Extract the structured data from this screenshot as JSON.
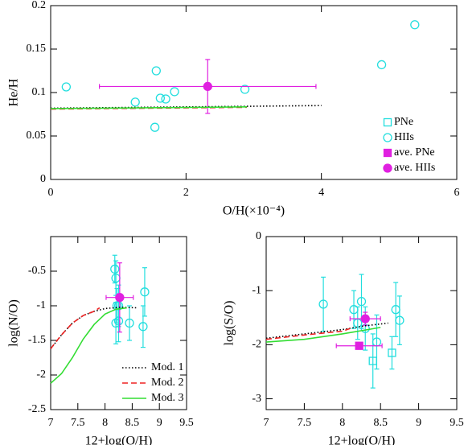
{
  "chart_data": [
    {
      "type": "scatter",
      "xlabel": "O/H(×10⁻⁴)",
      "ylabel": "He/H",
      "xlim": [
        0,
        6
      ],
      "xticks": [
        0,
        2,
        4,
        6
      ],
      "ylim": [
        0,
        0.2
      ],
      "yticks": [
        0,
        0.05,
        0.1,
        0.15,
        0.2
      ],
      "legend": "lower right",
      "series": [
        {
          "name": "PNe",
          "color": "#22dede",
          "marker": "open-square",
          "x": [],
          "y": []
        },
        {
          "name": "HIIs",
          "color": "#22dede",
          "marker": "open-circle",
          "x": [
            0.23,
            1.25,
            1.56,
            1.54,
            1.62,
            1.7,
            1.83,
            2.87,
            4.89,
            5.38
          ],
          "y": [
            0.1065,
            0.089,
            0.125,
            0.06,
            0.0935,
            0.0926,
            0.101,
            0.1037,
            0.132,
            0.178
          ]
        },
        {
          "name": "ave. PNe",
          "color": "#e020e0",
          "marker": "filled-square",
          "x": [],
          "y": []
        },
        {
          "name": "ave. HIIs",
          "color": "#e020e0",
          "marker": "filled-circle",
          "x": [
            2.32
          ],
          "y": [
            0.107
          ],
          "xerr": [
            1.6
          ],
          "yerr": [
            0.031
          ]
        },
        {
          "color": "#000000",
          "style": "dotted",
          "x": [
            0,
            4
          ],
          "y": [
            0.082,
            0.085
          ]
        },
        {
          "color": "#ee2222",
          "style": "dashed",
          "x": [
            0,
            2.9
          ],
          "y": [
            0.081,
            0.083
          ]
        },
        {
          "color": "#33dd33",
          "style": "solid",
          "x": [
            0,
            2.9
          ],
          "y": [
            0.0815,
            0.0835
          ]
        }
      ]
    },
    {
      "type": "scatter",
      "xlabel": "12+log(O/H)",
      "ylabel": "log(N/O)",
      "xlim": [
        7,
        9.5
      ],
      "xticks": [
        7,
        7.5,
        8,
        8.5,
        9,
        9.5
      ],
      "ylim": [
        -2.5,
        0
      ],
      "yticks": [
        -2.5,
        -2,
        -1.5,
        -1,
        -0.5
      ],
      "legend": "lower right",
      "series": [
        {
          "color": "#22dede",
          "marker": "open-circle",
          "x": [
            8.18,
            8.2,
            8.22,
            8.2,
            8.25,
            8.25,
            8.45,
            8.7,
            8.73
          ],
          "y": [
            -0.47,
            -0.6,
            -1.0,
            -1.25,
            -1.22,
            -1.0,
            -1.25,
            -1.3,
            -0.8
          ],
          "yerr": [
            0.2,
            0.25,
            0.25,
            0.3,
            0.3,
            0.3,
            0.25,
            0.3,
            0.35
          ]
        },
        {
          "color": "#e020e0",
          "marker": "filled-circle",
          "x": [
            8.27
          ],
          "y": [
            -0.88
          ],
          "xerr": [
            0.25
          ],
          "yerr": [
            0.5
          ]
        },
        {
          "name": "Mod. 1",
          "color": "#000000",
          "style": "dotted",
          "x": [
            7,
            7.2,
            7.4,
            7.6,
            7.8,
            8.0,
            8.3,
            8.6
          ],
          "y": [
            -1.62,
            -1.42,
            -1.25,
            -1.14,
            -1.08,
            -1.04,
            -1.02,
            -1.03
          ]
        },
        {
          "name": "Mod. 2",
          "color": "#ee2222",
          "style": "dashed",
          "x": [
            7,
            7.2,
            7.4,
            7.6,
            7.8,
            7.9
          ],
          "y": [
            -1.62,
            -1.42,
            -1.25,
            -1.14,
            -1.08,
            -1.03
          ]
        },
        {
          "name": "Mod. 3",
          "color": "#33dd33",
          "style": "solid",
          "x": [
            7,
            7.2,
            7.4,
            7.6,
            7.8,
            8.0,
            8.2,
            8.4
          ],
          "y": [
            -2.12,
            -1.98,
            -1.75,
            -1.48,
            -1.27,
            -1.12,
            -1.05,
            -1.03
          ]
        }
      ]
    },
    {
      "type": "scatter",
      "xlabel": "12+log(O/H)",
      "ylabel": "log(S/O)",
      "xlim": [
        7,
        9.5
      ],
      "xticks": [
        7,
        7.5,
        8,
        8.5,
        9,
        9.5
      ],
      "ylim": [
        -3.2,
        0
      ],
      "yticks": [
        -3,
        -2,
        -1,
        0
      ],
      "series": [
        {
          "color": "#22dede",
          "marker": "open-circle",
          "x": [
            7.75,
            8.15,
            8.2,
            8.25,
            8.3,
            8.45,
            8.7,
            8.75
          ],
          "y": [
            -1.25,
            -1.35,
            -1.6,
            -1.2,
            -1.7,
            -1.95,
            -1.35,
            -1.55
          ],
          "yerr": [
            0.5,
            0.35,
            0.3,
            0.5,
            0.4,
            0.5,
            0.5,
            0.45
          ]
        },
        {
          "color": "#22dede",
          "marker": "open-square",
          "x": [
            8.4,
            8.65
          ],
          "y": [
            -2.3,
            -2.15
          ],
          "yerr": [
            0.5,
            0.3
          ]
        },
        {
          "color": "#e020e0",
          "marker": "filled-square",
          "x": [
            8.22
          ],
          "y": [
            -2.02
          ],
          "xerr": [
            0.3
          ]
        },
        {
          "color": "#e020e0",
          "marker": "filled-circle",
          "x": [
            8.3
          ],
          "y": [
            -1.52
          ],
          "xerr": [
            0.2
          ],
          "yerr": [
            0.12
          ]
        },
        {
          "color": "#000000",
          "style": "dotted",
          "x": [
            7,
            7.5,
            8,
            8.3,
            8.6
          ],
          "y": [
            -1.88,
            -1.8,
            -1.72,
            -1.65,
            -1.6
          ]
        },
        {
          "color": "#ee2222",
          "style": "dashed",
          "x": [
            7,
            7.5,
            8,
            8.1
          ],
          "y": [
            -1.9,
            -1.82,
            -1.75,
            -1.7
          ]
        },
        {
          "color": "#33dd33",
          "style": "solid",
          "x": [
            7,
            7.5,
            8,
            8.5
          ],
          "y": [
            -1.95,
            -1.9,
            -1.8,
            -1.68
          ]
        }
      ]
    }
  ]
}
